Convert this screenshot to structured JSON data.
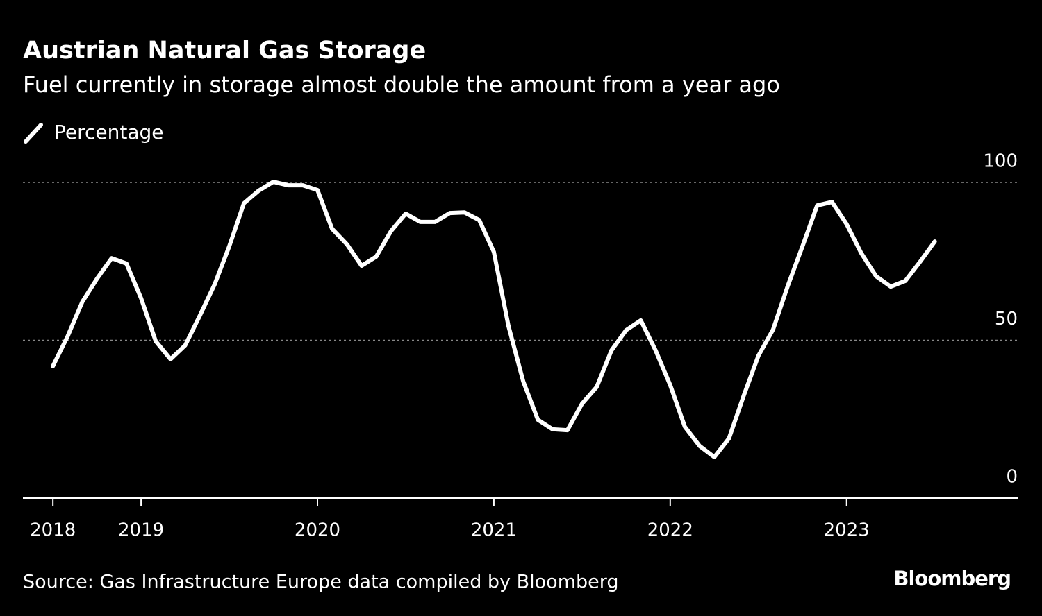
{
  "chart_data": {
    "type": "line",
    "title": "Austrian Natural Gas Storage",
    "subtitle": "Fuel currently in storage almost double the amount from a year ago",
    "source": "Source: Gas Infrastructure Europe data compiled by Bloomberg",
    "brand": "Bloomberg",
    "x": [
      2018.5,
      2018.583,
      2018.667,
      2018.75,
      2018.833,
      2018.917,
      2019,
      2019.083,
      2019.167,
      2019.25,
      2019.333,
      2019.417,
      2019.5,
      2019.583,
      2019.667,
      2019.75,
      2019.833,
      2019.917,
      2020,
      2020.083,
      2020.167,
      2020.25,
      2020.333,
      2020.417,
      2020.5,
      2020.583,
      2020.667,
      2020.75,
      2020.833,
      2020.917,
      2021,
      2021.083,
      2021.167,
      2021.25,
      2021.333,
      2021.417,
      2021.5,
      2021.583,
      2021.667,
      2021.75,
      2021.833,
      2021.917,
      2022,
      2022.083,
      2022.167,
      2022.25,
      2022.333,
      2022.417,
      2022.5,
      2022.583,
      2022.667,
      2022.75,
      2022.833,
      2022.917,
      2023,
      2023.083,
      2023.167,
      2023.25,
      2023.333,
      2023.417,
      2023.5
    ],
    "series": [
      {
        "name": "Percentage",
        "color": "#ffffff",
        "values": [
          41.8,
          51.2,
          62.2,
          69.5,
          76.0,
          74.3,
          63.3,
          49.7,
          44.0,
          48.4,
          57.8,
          67.7,
          79.8,
          93.4,
          97.4,
          100.2,
          99.1,
          99.1,
          97.6,
          85.3,
          80.4,
          73.6,
          76.5,
          84.6,
          90.1,
          87.5,
          87.5,
          90.3,
          90.5,
          88.1,
          78.0,
          54.5,
          36.9,
          24.8,
          21.8,
          21.5,
          29.9,
          35.2,
          46.8,
          53.2,
          56.3,
          46.8,
          35.8,
          22.6,
          16.5,
          13.0,
          18.9,
          32.5,
          45.1,
          53.4,
          67.3,
          79.8,
          92.7,
          93.8,
          86.8,
          77.6,
          70.3,
          67.0,
          68.8,
          74.9,
          81.3
        ]
      }
    ],
    "xlim": [
      2018.33,
      2023.97
    ],
    "xticks": [
      {
        "value": 2018.5,
        "label": "2018"
      },
      2019,
      2020,
      2021,
      2022,
      2023
    ],
    "ylim": [
      0,
      100
    ],
    "yticks": [
      0,
      50,
      100
    ],
    "grid": true
  }
}
